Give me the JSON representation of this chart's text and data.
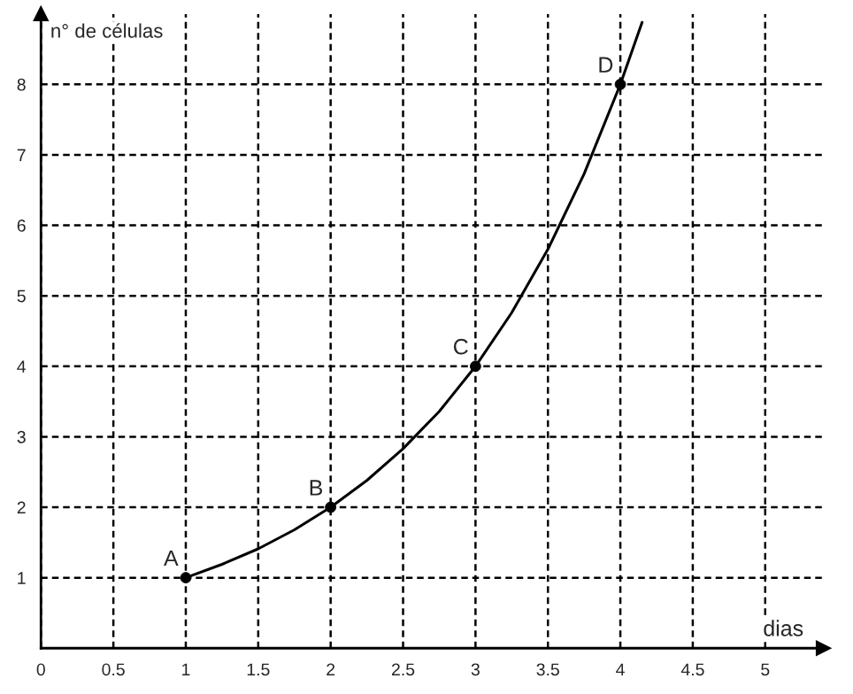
{
  "chart_data": {
    "type": "line",
    "xlabel": "dias",
    "ylabel": "n° de células",
    "series": [
      {
        "color": "#000000",
        "marker": "none",
        "x": [
          1,
          1.25,
          1.5,
          1.75,
          2,
          2.25,
          2.5,
          2.75,
          3,
          3.25,
          3.5,
          3.75,
          4,
          4.15
        ],
        "values": [
          1,
          1.19,
          1.41,
          1.68,
          2,
          2.38,
          2.83,
          3.36,
          4,
          4.76,
          5.66,
          6.73,
          8,
          8.88
        ]
      },
      {
        "type": "scatter",
        "color": "#000000",
        "marker": "circle",
        "x": [
          1,
          2,
          3,
          4
        ],
        "values": [
          1,
          2,
          4,
          8
        ]
      }
    ],
    "annotations": [
      {
        "text": "A",
        "x": 1,
        "y": 1
      },
      {
        "text": "B",
        "x": 2,
        "y": 2
      },
      {
        "text": "C",
        "x": 3,
        "y": 4
      },
      {
        "text": "D",
        "x": 4,
        "y": 8
      }
    ],
    "xlim": [
      0,
      5.4
    ],
    "ylim": [
      0,
      9
    ],
    "xticks": [
      0,
      0.5,
      1,
      1.5,
      2,
      2.5,
      3,
      3.5,
      4,
      4.5,
      5
    ],
    "yticks": [
      1,
      2,
      3,
      4,
      5,
      6,
      7,
      8
    ],
    "grid": true,
    "line_style": "solid"
  }
}
